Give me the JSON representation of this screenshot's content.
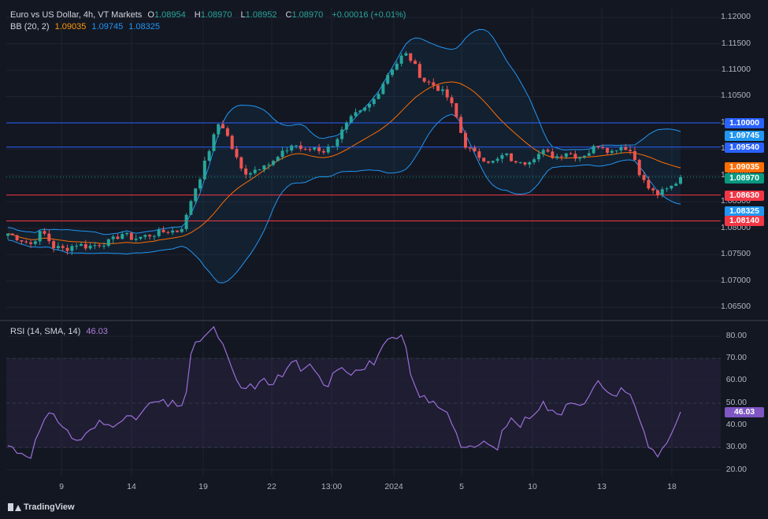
{
  "legend": {
    "symbol": "Euro vs US Dollar, 4h, VT Markets",
    "open_label": "O",
    "open": "1.08954",
    "high_label": "H",
    "high": "1.08970",
    "low_label": "L",
    "low": "1.08952",
    "close_label": "C",
    "close": "1.08970",
    "change": "+0.00016 (+0.01%)",
    "bb_name": "BB (20, 2)",
    "bb_basis": "1.09035",
    "bb_upper": "1.09745",
    "bb_lower": "1.08325",
    "rsi_name": "RSI (14, SMA, 14)",
    "rsi_value": "46.03"
  },
  "price_axis": {
    "ticks": [
      "1.12000",
      "1.11500",
      "1.11000",
      "1.10500",
      "1.10000",
      "1.09500",
      "1.09000",
      "1.08500",
      "1.08000",
      "1.07500",
      "1.07000",
      "1.06500"
    ]
  },
  "rsi_axis": {
    "ticks": [
      "80.00",
      "70.00",
      "60.00",
      "50.00",
      "40.00",
      "30.00",
      "20.00"
    ]
  },
  "time_axis": {
    "ticks": [
      "9",
      "14",
      "19",
      "22",
      "13:00",
      "2024",
      "5",
      "10",
      "13",
      "18"
    ]
  },
  "price_labels": [
    {
      "text": "1.10000",
      "price": 1.1,
      "color": "#2962ff"
    },
    {
      "text": "1.09745",
      "price": 1.09745,
      "color": "#2196f3"
    },
    {
      "text": "1.09540",
      "price": 1.0954,
      "color": "#2962ff"
    },
    {
      "text": "1.09035",
      "price": 1.09035,
      "color": "#ff6d00"
    },
    {
      "text": "1.08970",
      "price": 1.0897,
      "color": "#089981"
    },
    {
      "text": "1.08630",
      "price": 1.0863,
      "color": "#f23645"
    },
    {
      "text": "1.08325",
      "price": 1.08325,
      "color": "#2196f3"
    },
    {
      "text": "1.08140",
      "price": 1.0814,
      "color": "#f23645"
    }
  ],
  "rsi_label": {
    "text": "46.03",
    "color": "#7e57c2"
  },
  "brand": "TradingView",
  "colors": {
    "up": "#26a69a",
    "down": "#ef5350",
    "basis": "#ff6d00",
    "band": "#2196f3",
    "rsi": "#9c6ed8",
    "hline_blue": "#2962ff",
    "hline_red": "#f23645"
  },
  "chart_data": {
    "type": "candlestick",
    "title": "Euro vs US Dollar, 4h, VT Markets",
    "price_range": [
      1.0628,
      1.1218
    ],
    "horizontal_lines": [
      {
        "price": 1.1,
        "color": "#2962ff"
      },
      {
        "price": 1.0954,
        "color": "#2962ff"
      },
      {
        "price": 1.0863,
        "color": "#f23645"
      },
      {
        "price": 1.0814,
        "color": "#f23645"
      }
    ],
    "price_path": [
      [
        0,
        1.079
      ],
      [
        10,
        1.078
      ],
      [
        20,
        1.077
      ],
      [
        30,
        1.0795
      ],
      [
        40,
        1.0765
      ],
      [
        50,
        1.076
      ],
      [
        60,
        1.077
      ],
      [
        70,
        1.0765
      ],
      [
        80,
        1.077
      ],
      [
        90,
        1.0775
      ],
      [
        100,
        1.079
      ],
      [
        110,
        1.078
      ],
      [
        120,
        1.0785
      ],
      [
        130,
        1.079
      ],
      [
        140,
        1.0795
      ],
      [
        150,
        1.0795
      ],
      [
        155,
        1.081
      ],
      [
        160,
        1.085
      ],
      [
        165,
        1.088
      ],
      [
        170,
        1.0905
      ],
      [
        175,
        1.094
      ],
      [
        180,
        1.097
      ],
      [
        185,
        1.1
      ],
      [
        190,
        1.099
      ],
      [
        195,
        1.096
      ],
      [
        200,
        1.0935
      ],
      [
        205,
        1.091
      ],
      [
        210,
        1.0905
      ],
      [
        215,
        1.091
      ],
      [
        220,
        1.0915
      ],
      [
        225,
        1.0925
      ],
      [
        230,
        1.092
      ],
      [
        235,
        1.093
      ],
      [
        240,
        1.094
      ],
      [
        245,
        1.095
      ],
      [
        250,
        1.096
      ],
      [
        255,
        1.0955
      ],
      [
        260,
        1.0945
      ],
      [
        265,
        1.095
      ],
      [
        270,
        1.0955
      ],
      [
        275,
        1.0945
      ],
      [
        280,
        1.095
      ],
      [
        285,
        1.096
      ],
      [
        290,
        1.0975
      ],
      [
        295,
        1.099
      ],
      [
        300,
        1.1005
      ],
      [
        305,
        1.1015
      ],
      [
        310,
        1.102
      ],
      [
        315,
        1.103
      ],
      [
        320,
        1.104
      ],
      [
        325,
        1.106
      ],
      [
        330,
        1.108
      ],
      [
        335,
        1.11
      ],
      [
        340,
        1.111
      ],
      [
        345,
        1.1125
      ],
      [
        350,
        1.113
      ],
      [
        355,
        1.1115
      ],
      [
        360,
        1.1095
      ],
      [
        365,
        1.108
      ],
      [
        370,
        1.1075
      ],
      [
        375,
        1.107
      ],
      [
        380,
        1.106
      ],
      [
        385,
        1.105
      ],
      [
        390,
        1.103
      ],
      [
        395,
        1.1
      ],
      [
        400,
        1.096
      ],
      [
        405,
        1.095
      ],
      [
        410,
        1.094
      ],
      [
        415,
        1.0935
      ],
      [
        420,
        1.093
      ],
      [
        425,
        1.0925
      ],
      [
        430,
        1.093
      ],
      [
        435,
        1.094
      ],
      [
        440,
        1.0935
      ],
      [
        445,
        1.092
      ],
      [
        450,
        1.093
      ],
      [
        455,
        1.0925
      ],
      [
        460,
        1.0935
      ],
      [
        465,
        1.094
      ],
      [
        470,
        1.0945
      ],
      [
        475,
        1.094
      ],
      [
        480,
        1.0935
      ],
      [
        485,
        1.094
      ],
      [
        490,
        1.0945
      ],
      [
        495,
        1.094
      ],
      [
        500,
        1.0935
      ],
      [
        505,
        1.094
      ],
      [
        510,
        1.0945
      ],
      [
        515,
        1.0955
      ],
      [
        520,
        1.096
      ],
      [
        525,
        1.095
      ],
      [
        530,
        1.0945
      ],
      [
        535,
        1.0955
      ],
      [
        540,
        1.0955
      ],
      [
        545,
        1.095
      ],
      [
        550,
        1.093
      ],
      [
        555,
        1.09
      ],
      [
        560,
        1.088
      ],
      [
        565,
        1.087
      ],
      [
        570,
        1.0865
      ],
      [
        575,
        1.087
      ],
      [
        580,
        1.0875
      ],
      [
        585,
        1.0885
      ],
      [
        590,
        1.0897
      ]
    ],
    "rsi": {
      "range": [
        17,
        86
      ],
      "overbought": 70,
      "middle": 50,
      "oversold": 30,
      "path": [
        [
          0,
          31
        ],
        [
          10,
          28
        ],
        [
          20,
          27
        ],
        [
          30,
          40
        ],
        [
          40,
          46
        ],
        [
          50,
          38
        ],
        [
          60,
          33
        ],
        [
          70,
          36
        ],
        [
          80,
          41
        ],
        [
          90,
          40
        ],
        [
          100,
          44
        ],
        [
          110,
          42
        ],
        [
          120,
          47
        ],
        [
          130,
          51
        ],
        [
          140,
          49
        ],
        [
          150,
          50
        ],
        [
          155,
          49
        ],
        [
          160,
          70
        ],
        [
          165,
          76
        ],
        [
          170,
          80
        ],
        [
          175,
          81
        ],
        [
          180,
          83
        ],
        [
          185,
          80
        ],
        [
          190,
          74
        ],
        [
          195,
          66
        ],
        [
          200,
          60
        ],
        [
          205,
          57
        ],
        [
          210,
          56
        ],
        [
          215,
          58
        ],
        [
          220,
          58
        ],
        [
          225,
          60
        ],
        [
          230,
          59
        ],
        [
          235,
          61
        ],
        [
          240,
          62
        ],
        [
          245,
          65
        ],
        [
          250,
          70
        ],
        [
          255,
          67
        ],
        [
          260,
          64
        ],
        [
          265,
          66
        ],
        [
          270,
          63
        ],
        [
          275,
          60
        ],
        [
          280,
          58
        ],
        [
          285,
          64
        ],
        [
          290,
          67
        ],
        [
          295,
          66
        ],
        [
          300,
          64
        ],
        [
          305,
          66
        ],
        [
          310,
          64
        ],
        [
          315,
          67
        ],
        [
          320,
          68
        ],
        [
          325,
          72
        ],
        [
          330,
          75
        ],
        [
          335,
          78
        ],
        [
          340,
          78
        ],
        [
          345,
          80
        ],
        [
          350,
          72
        ],
        [
          355,
          58
        ],
        [
          360,
          55
        ],
        [
          365,
          52
        ],
        [
          370,
          50
        ],
        [
          375,
          50
        ],
        [
          380,
          48
        ],
        [
          385,
          47
        ],
        [
          390,
          42
        ],
        [
          395,
          33
        ],
        [
          400,
          30
        ],
        [
          405,
          29
        ],
        [
          410,
          29
        ],
        [
          415,
          33
        ],
        [
          420,
          32
        ],
        [
          425,
          29
        ],
        [
          430,
          31
        ],
        [
          435,
          38
        ],
        [
          440,
          43
        ],
        [
          445,
          42
        ],
        [
          450,
          40
        ],
        [
          455,
          43
        ],
        [
          460,
          46
        ],
        [
          465,
          48
        ],
        [
          470,
          50
        ],
        [
          475,
          47
        ],
        [
          480,
          44
        ],
        [
          485,
          46
        ],
        [
          490,
          50
        ],
        [
          495,
          52
        ],
        [
          500,
          51
        ],
        [
          505,
          48
        ],
        [
          510,
          53
        ],
        [
          515,
          57
        ],
        [
          520,
          60
        ],
        [
          525,
          56
        ],
        [
          530,
          52
        ],
        [
          535,
          56
        ],
        [
          540,
          57
        ],
        [
          545,
          54
        ],
        [
          550,
          48
        ],
        [
          555,
          42
        ],
        [
          560,
          33
        ],
        [
          565,
          29
        ],
        [
          570,
          27
        ],
        [
          575,
          31
        ],
        [
          580,
          33
        ],
        [
          585,
          38
        ],
        [
          590,
          46
        ]
      ]
    }
  }
}
